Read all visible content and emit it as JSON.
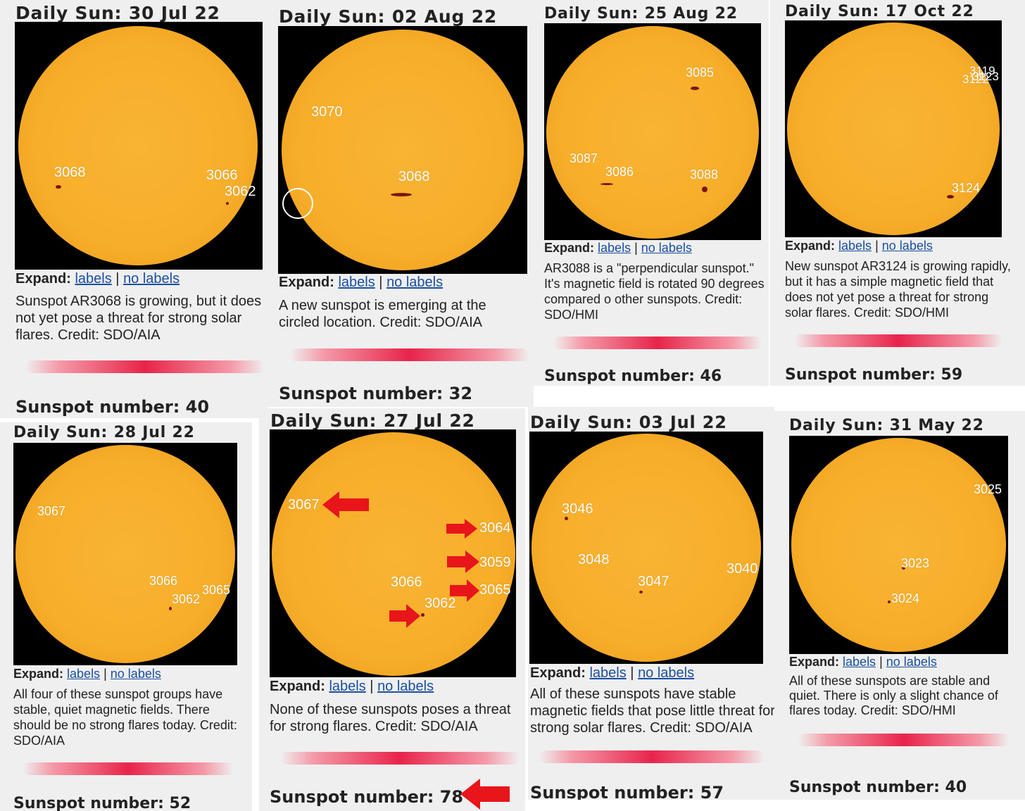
{
  "common": {
    "expand_label": "Expand:",
    "labels_link": "labels",
    "sep": "|",
    "nolabels_link": "no labels"
  },
  "p1": {
    "title": "Daily Sun: 30 Jul 22",
    "spots": [
      "3068",
      "3066",
      "3062"
    ],
    "desc": "Sunspot AR3068 is growing, but it does not yet pose a threat for strong solar flares. Credit: SDO/AIA",
    "ssn": "Sunspot number: 40"
  },
  "p2": {
    "title": "Daily Sun: 02 Aug 22",
    "spots": [
      "3070",
      "3068"
    ],
    "desc": "A new sunspot is emerging at the circled location. Credit: SDO/AIA",
    "ssn": "Sunspot number: 32"
  },
  "p3": {
    "title": "Daily Sun: 25 Aug 22",
    "spots": [
      "3085",
      "3087",
      "3086",
      "3088"
    ],
    "desc": "AR3088 is a \"perpendicular sunspot.\" It's magnetic field is rotated 90 degrees compared o other sunspots. Credit: SDO/HMI",
    "ssn": "Sunspot number: 46"
  },
  "p4": {
    "title": "Daily Sun: 17 Oct 22",
    "spots": [
      "3119",
      "3122",
      "3123",
      "3124"
    ],
    "desc": "New sunspot AR3124 is growing rapidly, but it has a simple magnetic field that does not yet pose a threat for strong solar flares. Credit: SDO/HMI",
    "ssn": "Sunspot number: 59"
  },
  "p5": {
    "title": "Daily Sun: 28 Jul 22",
    "spots": [
      "3067",
      "3066",
      "3065",
      "3062"
    ],
    "desc": "All four of these sunspot groups have stable, quiet magnetic fields. There should be no strong flares today. Credit: SDO/AIA",
    "ssn": "Sunspot number: 52"
  },
  "p6": {
    "title": "Daily Sun: 27 Jul 22",
    "spots": [
      "3067",
      "3064",
      "3059",
      "3066",
      "3065",
      "3062"
    ],
    "desc": "None of these sunspots poses a threat for strong flares. Credit: SDO/AIA",
    "ssn": "Sunspot number: 78"
  },
  "p7": {
    "title": "Daily Sun: 03 Jul 22",
    "spots": [
      "3046",
      "3048",
      "3047",
      "3040"
    ],
    "desc": "All of these sunspots have stable magnetic fields that pose little threat for strong solar flares. Credit: SDO/AIA",
    "ssn": "Sunspot number: 57"
  },
  "p8": {
    "title": "Daily Sun: 31 May 22",
    "spots": [
      "3025",
      "3023",
      "3024"
    ],
    "desc": "All of these sunspots are stable and quiet. There is only a slight chance of flares today. Credit: SDO/HMI",
    "ssn": "Sunspot number: 40"
  },
  "colors": {
    "sun": "#f7ae2a",
    "arrow": "#e8151b",
    "link": "#1a4fa0",
    "bar": "#e8244a"
  },
  "icons": [
    "red-arrow-icon",
    "circle-marker-icon"
  ]
}
